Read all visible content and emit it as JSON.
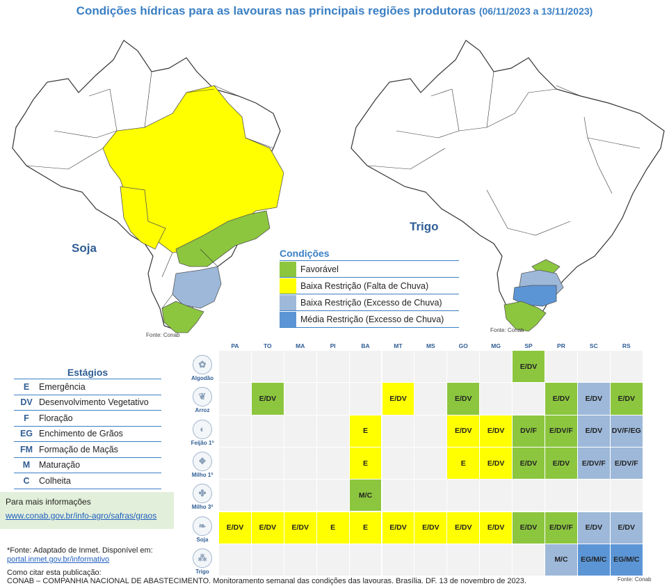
{
  "title": {
    "main": "Condições hídricas para as lavouras nas principais regiões produtoras",
    "dates": "(06/11/2023 a 13/11/2023)"
  },
  "maps": {
    "left_label": "Soja",
    "right_label": "Trigo",
    "source": "Fonte: Conab"
  },
  "colors": {
    "favoravel": "#8cc63f",
    "baixa_falta": "#ffff00",
    "baixa_excesso": "#9db8d9",
    "media_excesso": "#5b95d6",
    "empty": "#f2f2f2"
  },
  "conditions": {
    "title": "Condições",
    "items": [
      {
        "code": "FAV",
        "label": "Favorável",
        "color": "#8cc63f"
      },
      {
        "code": "BRF",
        "label": "Baixa Restrição (Falta de Chuva)",
        "color": "#ffff00"
      },
      {
        "code": "BRE",
        "label": "Baixa Restrição (Excesso de Chuva)",
        "color": "#9db8d9"
      },
      {
        "code": "MRE",
        "label": "Média Restrição (Excesso de Chuva)",
        "color": "#5b95d6"
      }
    ]
  },
  "stages": {
    "title": "Estágios",
    "items": [
      {
        "code": "E",
        "label": "Emergência"
      },
      {
        "code": "DV",
        "label": "Desenvolvimento Vegetativo"
      },
      {
        "code": "F",
        "label": "Floração"
      },
      {
        "code": "EG",
        "label": "Enchimento de Grãos"
      },
      {
        "code": "FM",
        "label": "Formação de Maçãs"
      },
      {
        "code": "M",
        "label": "Maturação"
      },
      {
        "code": "C",
        "label": "Colheita"
      }
    ]
  },
  "info": {
    "line1": "Para mais informações",
    "link": "www.conab.gov.br/info-agro/safras/graos"
  },
  "footer": {
    "fonte1": "*Fonte: Adaptado de Inmet. Disponível em:",
    "fonte_link": "portal.inmet.gov.br/informativo",
    "cite_label": "Como citar esta publicação:",
    "citation": "CONAB – COMPANHIA NACIONAL DE ABASTECIMENTO. Monitoramento semanal das condições das lavouras. Brasília. DF. 13 de novembro de 2023.",
    "table_source": "Fonte: Conab"
  },
  "chart_data": {
    "type": "table",
    "states": [
      "PA",
      "TO",
      "MA",
      "PI",
      "BA",
      "MT",
      "MS",
      "GO",
      "MG",
      "SP",
      "PR",
      "SC",
      "RS"
    ],
    "crops": [
      {
        "name": "Algodão",
        "icon": "cotton-icon",
        "cells": [
          null,
          null,
          null,
          null,
          null,
          null,
          null,
          null,
          null,
          {
            "t": "E/DV",
            "c": "FAV"
          },
          null,
          null,
          null
        ]
      },
      {
        "name": "Arroz",
        "icon": "rice-icon",
        "cells": [
          null,
          {
            "t": "E/DV",
            "c": "FAV"
          },
          null,
          null,
          null,
          {
            "t": "E/DV",
            "c": "BRF"
          },
          null,
          {
            "t": "E/DV",
            "c": "FAV"
          },
          null,
          null,
          {
            "t": "E/DV",
            "c": "FAV"
          },
          {
            "t": "E/DV",
            "c": "BRE"
          },
          {
            "t": "E/DV",
            "c": "FAV"
          }
        ]
      },
      {
        "name": "Feijão 1ª",
        "icon": "bean-icon",
        "cells": [
          null,
          null,
          null,
          null,
          {
            "t": "E",
            "c": "BRF"
          },
          null,
          null,
          {
            "t": "E/DV",
            "c": "BRF"
          },
          {
            "t": "E/DV",
            "c": "BRF"
          },
          {
            "t": "DV/F",
            "c": "FAV"
          },
          {
            "t": "E/DV/F",
            "c": "FAV"
          },
          {
            "t": "E/DV",
            "c": "BRE"
          },
          {
            "t": "DV/F/EG",
            "c": "BRE"
          }
        ]
      },
      {
        "name": "Milho 1ª",
        "icon": "corn-icon",
        "cells": [
          null,
          null,
          null,
          null,
          {
            "t": "E",
            "c": "BRF"
          },
          null,
          null,
          {
            "t": "E",
            "c": "BRF"
          },
          {
            "t": "E/DV",
            "c": "BRF"
          },
          {
            "t": "E/DV",
            "c": "FAV"
          },
          {
            "t": "E/DV",
            "c": "FAV"
          },
          {
            "t": "E/DV/F",
            "c": "BRE"
          },
          {
            "t": "E/DV/F",
            "c": "BRE"
          }
        ]
      },
      {
        "name": "Milho 3ª",
        "icon": "corn-plant-icon",
        "cells": [
          null,
          null,
          null,
          null,
          {
            "t": "M/C",
            "c": "FAV"
          },
          null,
          null,
          null,
          null,
          null,
          null,
          null,
          null
        ]
      },
      {
        "name": "Soja",
        "icon": "soy-icon",
        "cells": [
          {
            "t": "E/DV",
            "c": "BRF"
          },
          {
            "t": "E/DV",
            "c": "BRF"
          },
          {
            "t": "E/DV",
            "c": "BRF"
          },
          {
            "t": "E",
            "c": "BRF"
          },
          {
            "t": "E",
            "c": "BRF"
          },
          {
            "t": "E/DV",
            "c": "BRF"
          },
          {
            "t": "E/DV",
            "c": "BRF"
          },
          {
            "t": "E/DV",
            "c": "BRF"
          },
          {
            "t": "E/DV",
            "c": "BRF"
          },
          {
            "t": "E/DV",
            "c": "FAV"
          },
          {
            "t": "E/DV/F",
            "c": "FAV"
          },
          {
            "t": "E/DV",
            "c": "BRE"
          },
          {
            "t": "E/DV",
            "c": "BRE"
          }
        ]
      },
      {
        "name": "Trigo",
        "icon": "wheat-icon",
        "cells": [
          null,
          null,
          null,
          null,
          null,
          null,
          null,
          null,
          null,
          null,
          {
            "t": "M/C",
            "c": "BRE"
          },
          {
            "t": "EG/M/C",
            "c": "MRE"
          },
          {
            "t": "EG/M/C",
            "c": "MRE"
          }
        ]
      }
    ]
  }
}
